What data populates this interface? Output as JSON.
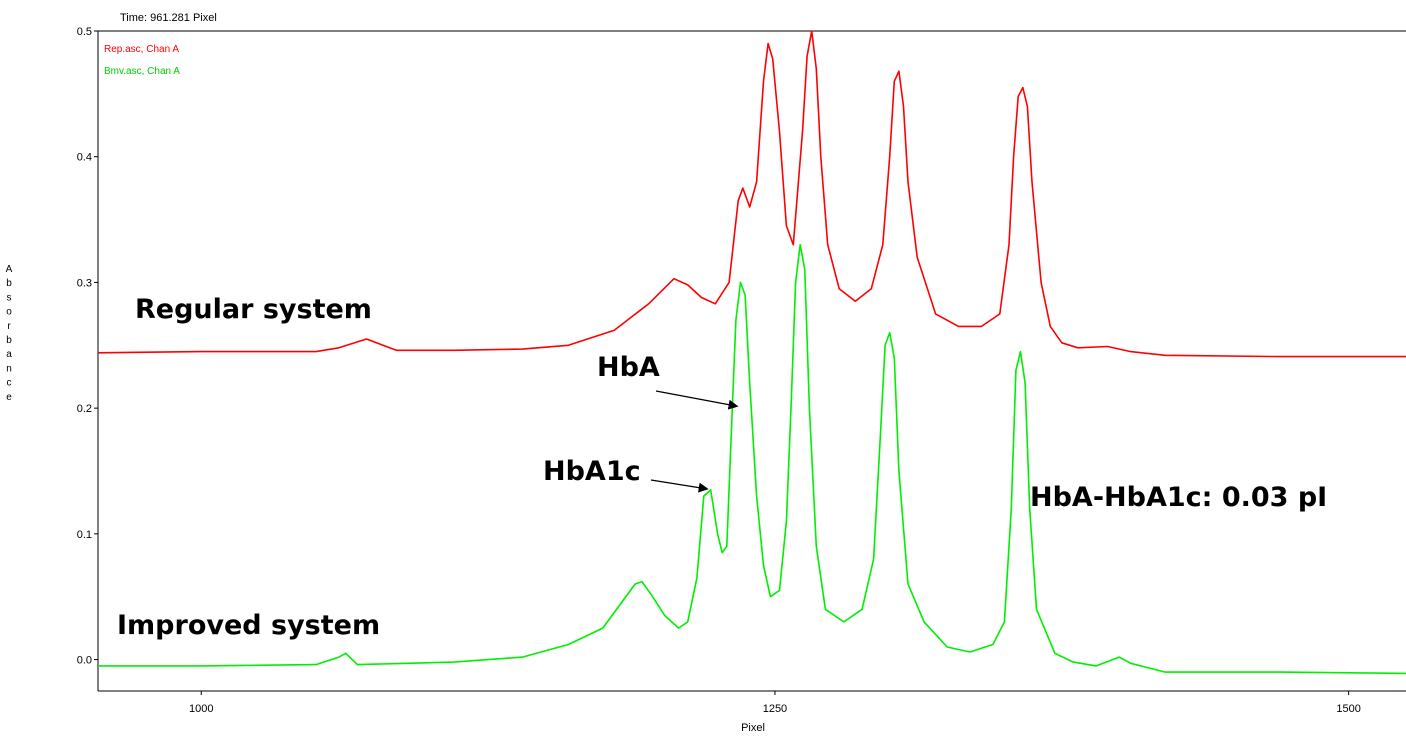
{
  "header": {
    "time_readout": "Time: 961.281 Pixel"
  },
  "chart_data": {
    "type": "line",
    "xlabel": "Pixel",
    "ylabel": "Absorbance",
    "xlim": [
      955,
      1525
    ],
    "ylim": [
      -0.025,
      0.5
    ],
    "x_ticks": [
      1000,
      1250,
      1500
    ],
    "y_ticks": [
      0.0,
      0.1,
      0.2,
      0.3,
      0.4,
      0.5
    ],
    "legend": [
      "Rep.asc, Chan A",
      "Bmv.asc, Chan A"
    ],
    "legend_position": "top-left",
    "series": [
      {
        "name": "Rep.asc, Chan A",
        "color": "#ff0000",
        "points": [
          [
            955,
            0.244
          ],
          [
            1000,
            0.245
          ],
          [
            1050,
            0.245
          ],
          [
            1060,
            0.248
          ],
          [
            1072,
            0.255
          ],
          [
            1085,
            0.246
          ],
          [
            1110,
            0.246
          ],
          [
            1140,
            0.247
          ],
          [
            1160,
            0.25
          ],
          [
            1180,
            0.262
          ],
          [
            1195,
            0.283
          ],
          [
            1206,
            0.303
          ],
          [
            1212,
            0.298
          ],
          [
            1218,
            0.288
          ],
          [
            1224,
            0.283
          ],
          [
            1230,
            0.3
          ],
          [
            1234,
            0.365
          ],
          [
            1236,
            0.375
          ],
          [
            1239,
            0.36
          ],
          [
            1242,
            0.38
          ],
          [
            1245,
            0.46
          ],
          [
            1247,
            0.49
          ],
          [
            1249,
            0.478
          ],
          [
            1252,
            0.42
          ],
          [
            1255,
            0.345
          ],
          [
            1258,
            0.33
          ],
          [
            1262,
            0.42
          ],
          [
            1264,
            0.48
          ],
          [
            1266,
            0.5
          ],
          [
            1268,
            0.47
          ],
          [
            1270,
            0.4
          ],
          [
            1273,
            0.33
          ],
          [
            1278,
            0.295
          ],
          [
            1285,
            0.285
          ],
          [
            1292,
            0.295
          ],
          [
            1297,
            0.33
          ],
          [
            1300,
            0.4
          ],
          [
            1302,
            0.46
          ],
          [
            1304,
            0.468
          ],
          [
            1306,
            0.44
          ],
          [
            1308,
            0.38
          ],
          [
            1312,
            0.32
          ],
          [
            1320,
            0.275
          ],
          [
            1330,
            0.265
          ],
          [
            1340,
            0.265
          ],
          [
            1348,
            0.275
          ],
          [
            1352,
            0.33
          ],
          [
            1354,
            0.4
          ],
          [
            1356,
            0.448
          ],
          [
            1358,
            0.455
          ],
          [
            1360,
            0.44
          ],
          [
            1362,
            0.38
          ],
          [
            1366,
            0.3
          ],
          [
            1370,
            0.265
          ],
          [
            1375,
            0.252
          ],
          [
            1382,
            0.248
          ],
          [
            1395,
            0.249
          ],
          [
            1405,
            0.245
          ],
          [
            1420,
            0.242
          ],
          [
            1470,
            0.241
          ],
          [
            1525,
            0.241
          ]
        ]
      },
      {
        "name": "Bmv.asc, Chan A",
        "color": "#00ee00",
        "points": [
          [
            955,
            -0.005
          ],
          [
            1000,
            -0.005
          ],
          [
            1050,
            -0.004
          ],
          [
            1060,
            0.002
          ],
          [
            1063,
            0.005
          ],
          [
            1068,
            -0.004
          ],
          [
            1090,
            -0.003
          ],
          [
            1110,
            -0.002
          ],
          [
            1140,
            0.002
          ],
          [
            1160,
            0.012
          ],
          [
            1175,
            0.025
          ],
          [
            1183,
            0.045
          ],
          [
            1189,
            0.06
          ],
          [
            1192,
            0.062
          ],
          [
            1196,
            0.052
          ],
          [
            1202,
            0.035
          ],
          [
            1208,
            0.025
          ],
          [
            1212,
            0.03
          ],
          [
            1216,
            0.065
          ],
          [
            1219,
            0.13
          ],
          [
            1222,
            0.135
          ],
          [
            1225,
            0.1
          ],
          [
            1227,
            0.085
          ],
          [
            1229,
            0.09
          ],
          [
            1231,
            0.18
          ],
          [
            1233,
            0.27
          ],
          [
            1235,
            0.3
          ],
          [
            1237,
            0.29
          ],
          [
            1239,
            0.22
          ],
          [
            1242,
            0.13
          ],
          [
            1245,
            0.075
          ],
          [
            1248,
            0.05
          ],
          [
            1252,
            0.055
          ],
          [
            1255,
            0.11
          ],
          [
            1257,
            0.2
          ],
          [
            1259,
            0.3
          ],
          [
            1261,
            0.33
          ],
          [
            1263,
            0.31
          ],
          [
            1265,
            0.2
          ],
          [
            1268,
            0.09
          ],
          [
            1272,
            0.04
          ],
          [
            1280,
            0.03
          ],
          [
            1288,
            0.04
          ],
          [
            1293,
            0.08
          ],
          [
            1296,
            0.18
          ],
          [
            1298,
            0.25
          ],
          [
            1300,
            0.26
          ],
          [
            1302,
            0.24
          ],
          [
            1304,
            0.15
          ],
          [
            1308,
            0.06
          ],
          [
            1315,
            0.03
          ],
          [
            1325,
            0.01
          ],
          [
            1335,
            0.006
          ],
          [
            1345,
            0.012
          ],
          [
            1350,
            0.03
          ],
          [
            1353,
            0.12
          ],
          [
            1355,
            0.23
          ],
          [
            1357,
            0.245
          ],
          [
            1359,
            0.22
          ],
          [
            1361,
            0.12
          ],
          [
            1364,
            0.04
          ],
          [
            1372,
            0.005
          ],
          [
            1380,
            -0.002
          ],
          [
            1390,
            -0.005
          ],
          [
            1400,
            0.002
          ],
          [
            1405,
            -0.003
          ],
          [
            1420,
            -0.01
          ],
          [
            1470,
            -0.01
          ],
          [
            1525,
            -0.011
          ]
        ]
      }
    ],
    "annotations": [
      {
        "text": "Regular system",
        "target": "series-rep"
      },
      {
        "text": "Improved system",
        "target": "series-bmv"
      },
      {
        "text": "HbA",
        "arrow_to": [
          1235,
          0.2
        ]
      },
      {
        "text": "HbA1c",
        "arrow_to": [
          1222,
          0.135
        ]
      },
      {
        "text": "HbA-HbA1c: 0.03 pI"
      }
    ]
  }
}
